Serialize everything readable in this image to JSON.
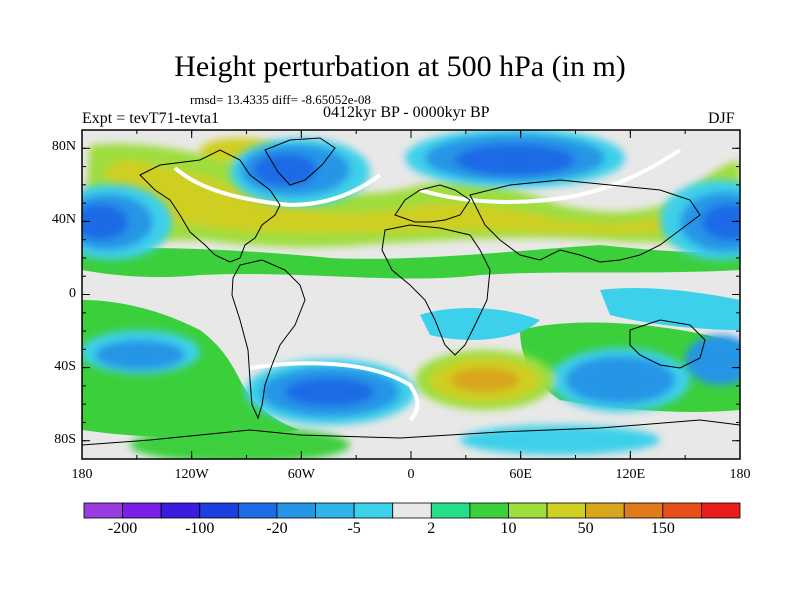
{
  "title": "Height perturbation at 500 hPa (in m)",
  "stats": "rmsd= 13.4335 diff= -8.65052e-08",
  "experiment": "Expt = tevT71-tevta1",
  "period": "0412kyr BP - 0000kyr BP",
  "season": "DJF",
  "map": {
    "lon_range": [
      -180,
      180
    ],
    "lat_range": [
      -90,
      90
    ],
    "x_ticks": [
      {
        "lon": -180,
        "label": "180"
      },
      {
        "lon": -120,
        "label": "120W"
      },
      {
        "lon": -60,
        "label": "60W"
      },
      {
        "lon": 0,
        "label": "0"
      },
      {
        "lon": 60,
        "label": "60E"
      },
      {
        "lon": 120,
        "label": "120E"
      },
      {
        "lon": 180,
        "label": "180"
      }
    ],
    "y_ticks": [
      {
        "lat": 80,
        "label": "80N"
      },
      {
        "lat": 40,
        "label": "40N"
      },
      {
        "lat": 0,
        "label": "0"
      },
      {
        "lat": -40,
        "label": "40S"
      },
      {
        "lat": -80,
        "label": "80S"
      }
    ],
    "minor_x_step": 30,
    "minor_y_step": 10
  },
  "colorbar": {
    "colors": [
      "#9a3de0",
      "#7a1fe6",
      "#3c1be0",
      "#1d3fe0",
      "#1e6be6",
      "#2595e6",
      "#2fb3e8",
      "#3dd0ea",
      "#e8e8e8",
      "#24df8a",
      "#3ccf3c",
      "#9edd3c",
      "#cfcf24",
      "#d9a51c",
      "#e07a1c",
      "#e8501a",
      "#e81e1e"
    ],
    "labels": [
      {
        "boundary": 1,
        "label": "-200"
      },
      {
        "boundary": 3,
        "label": "-100"
      },
      {
        "boundary": 5,
        "label": "-20"
      },
      {
        "boundary": 7,
        "label": "-5"
      },
      {
        "boundary": 9,
        "label": "2"
      },
      {
        "boundary": 11,
        "label": "10"
      },
      {
        "boundary": 13,
        "label": "50"
      },
      {
        "boundary": 15,
        "label": "150"
      }
    ]
  }
}
